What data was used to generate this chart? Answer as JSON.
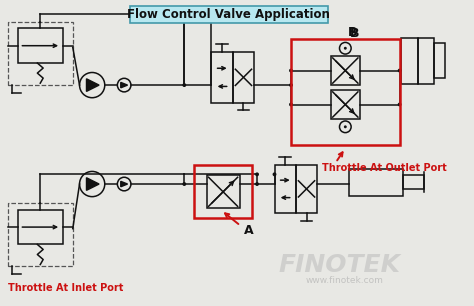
{
  "title": "Flow Control Valve Application",
  "title_box_color": "#b8e8f0",
  "bg_color": "#e8e8e4",
  "line_color": "#111111",
  "red_color": "#cc1111",
  "label_A": "A",
  "label_B": "B",
  "text_inlet": "Throttle At Inlet Port",
  "text_outlet": "Throttle At Outlet Port",
  "watermark": "FINOTEK",
  "watermark_url": "www.finotek.com",
  "figsize": [
    4.74,
    3.06
  ],
  "dpi": 100
}
